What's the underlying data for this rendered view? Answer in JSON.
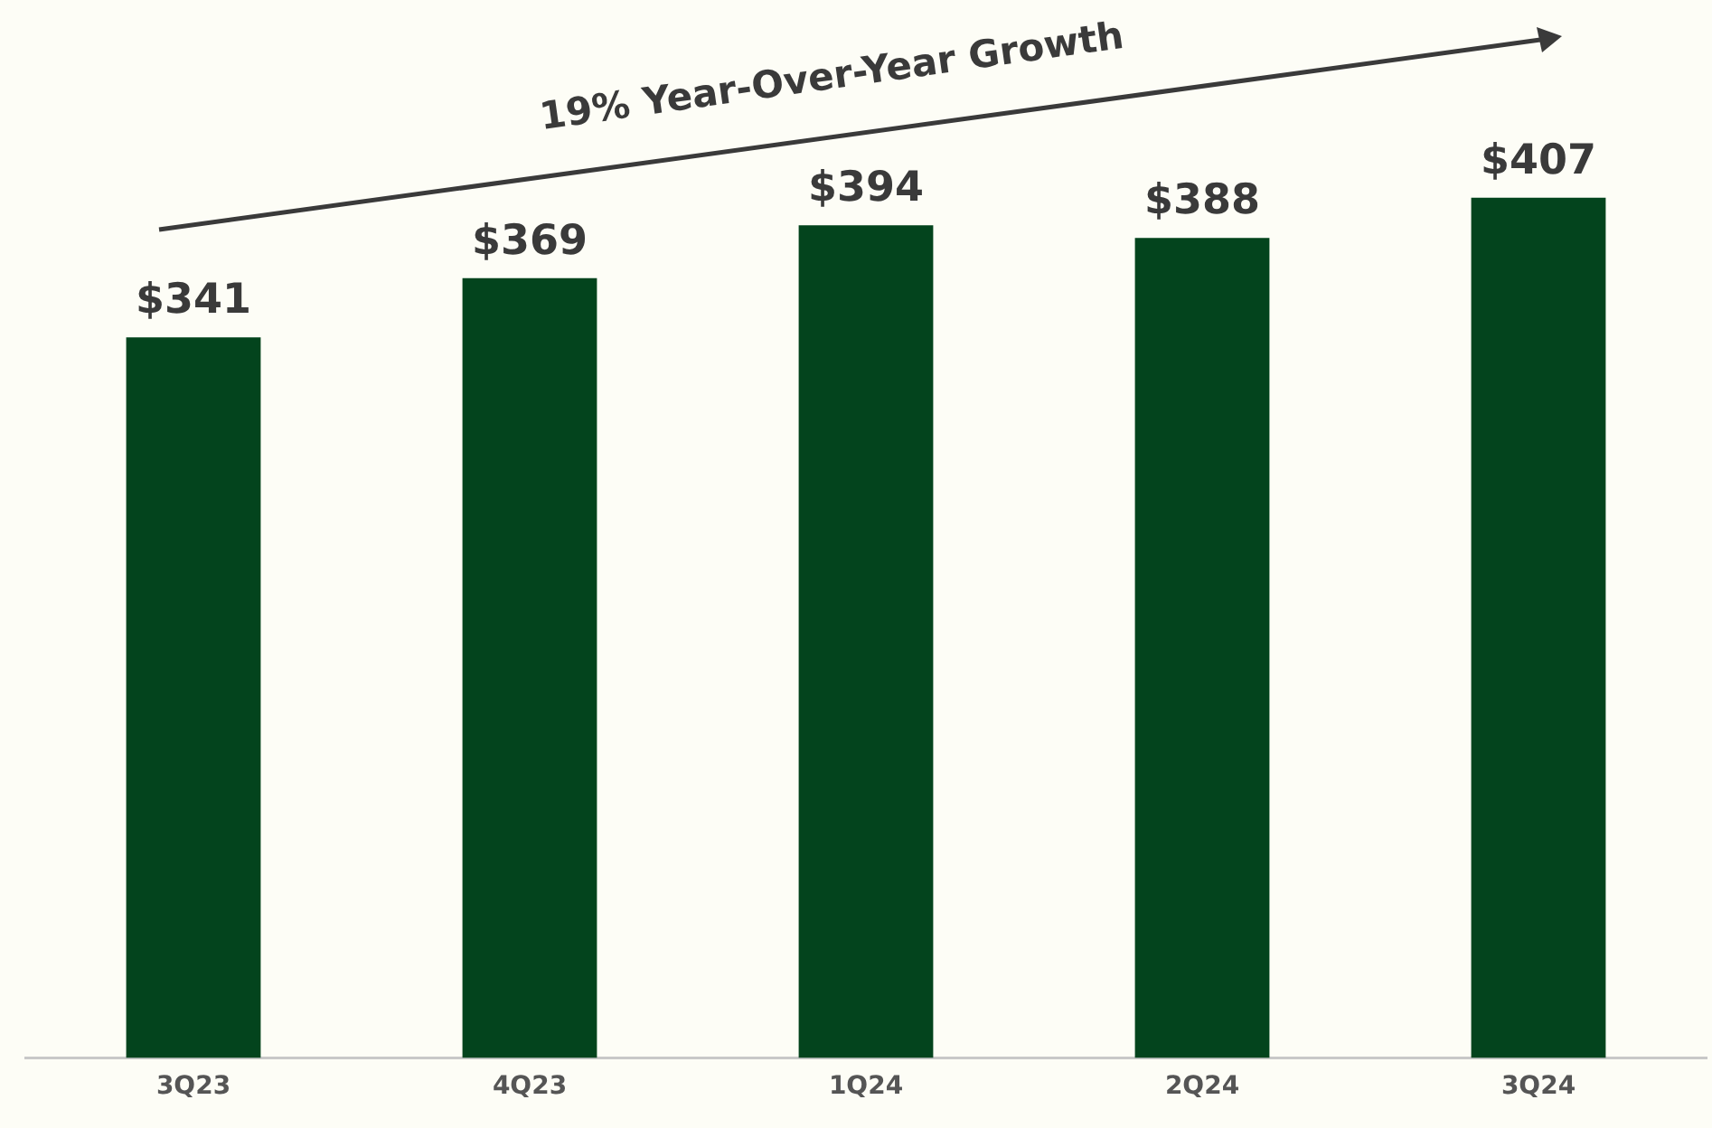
{
  "chart_data": {
    "type": "bar",
    "categories": [
      "3Q23",
      "4Q23",
      "1Q24",
      "2Q24",
      "3Q24"
    ],
    "values": [
      341,
      369,
      394,
      388,
      407
    ],
    "value_labels": [
      "$341",
      "$369",
      "$394",
      "$388",
      "$407"
    ],
    "color": "#03441d",
    "annotations": [
      "19% Year-Over-Year Growth"
    ],
    "grid": false,
    "legend": false
  }
}
